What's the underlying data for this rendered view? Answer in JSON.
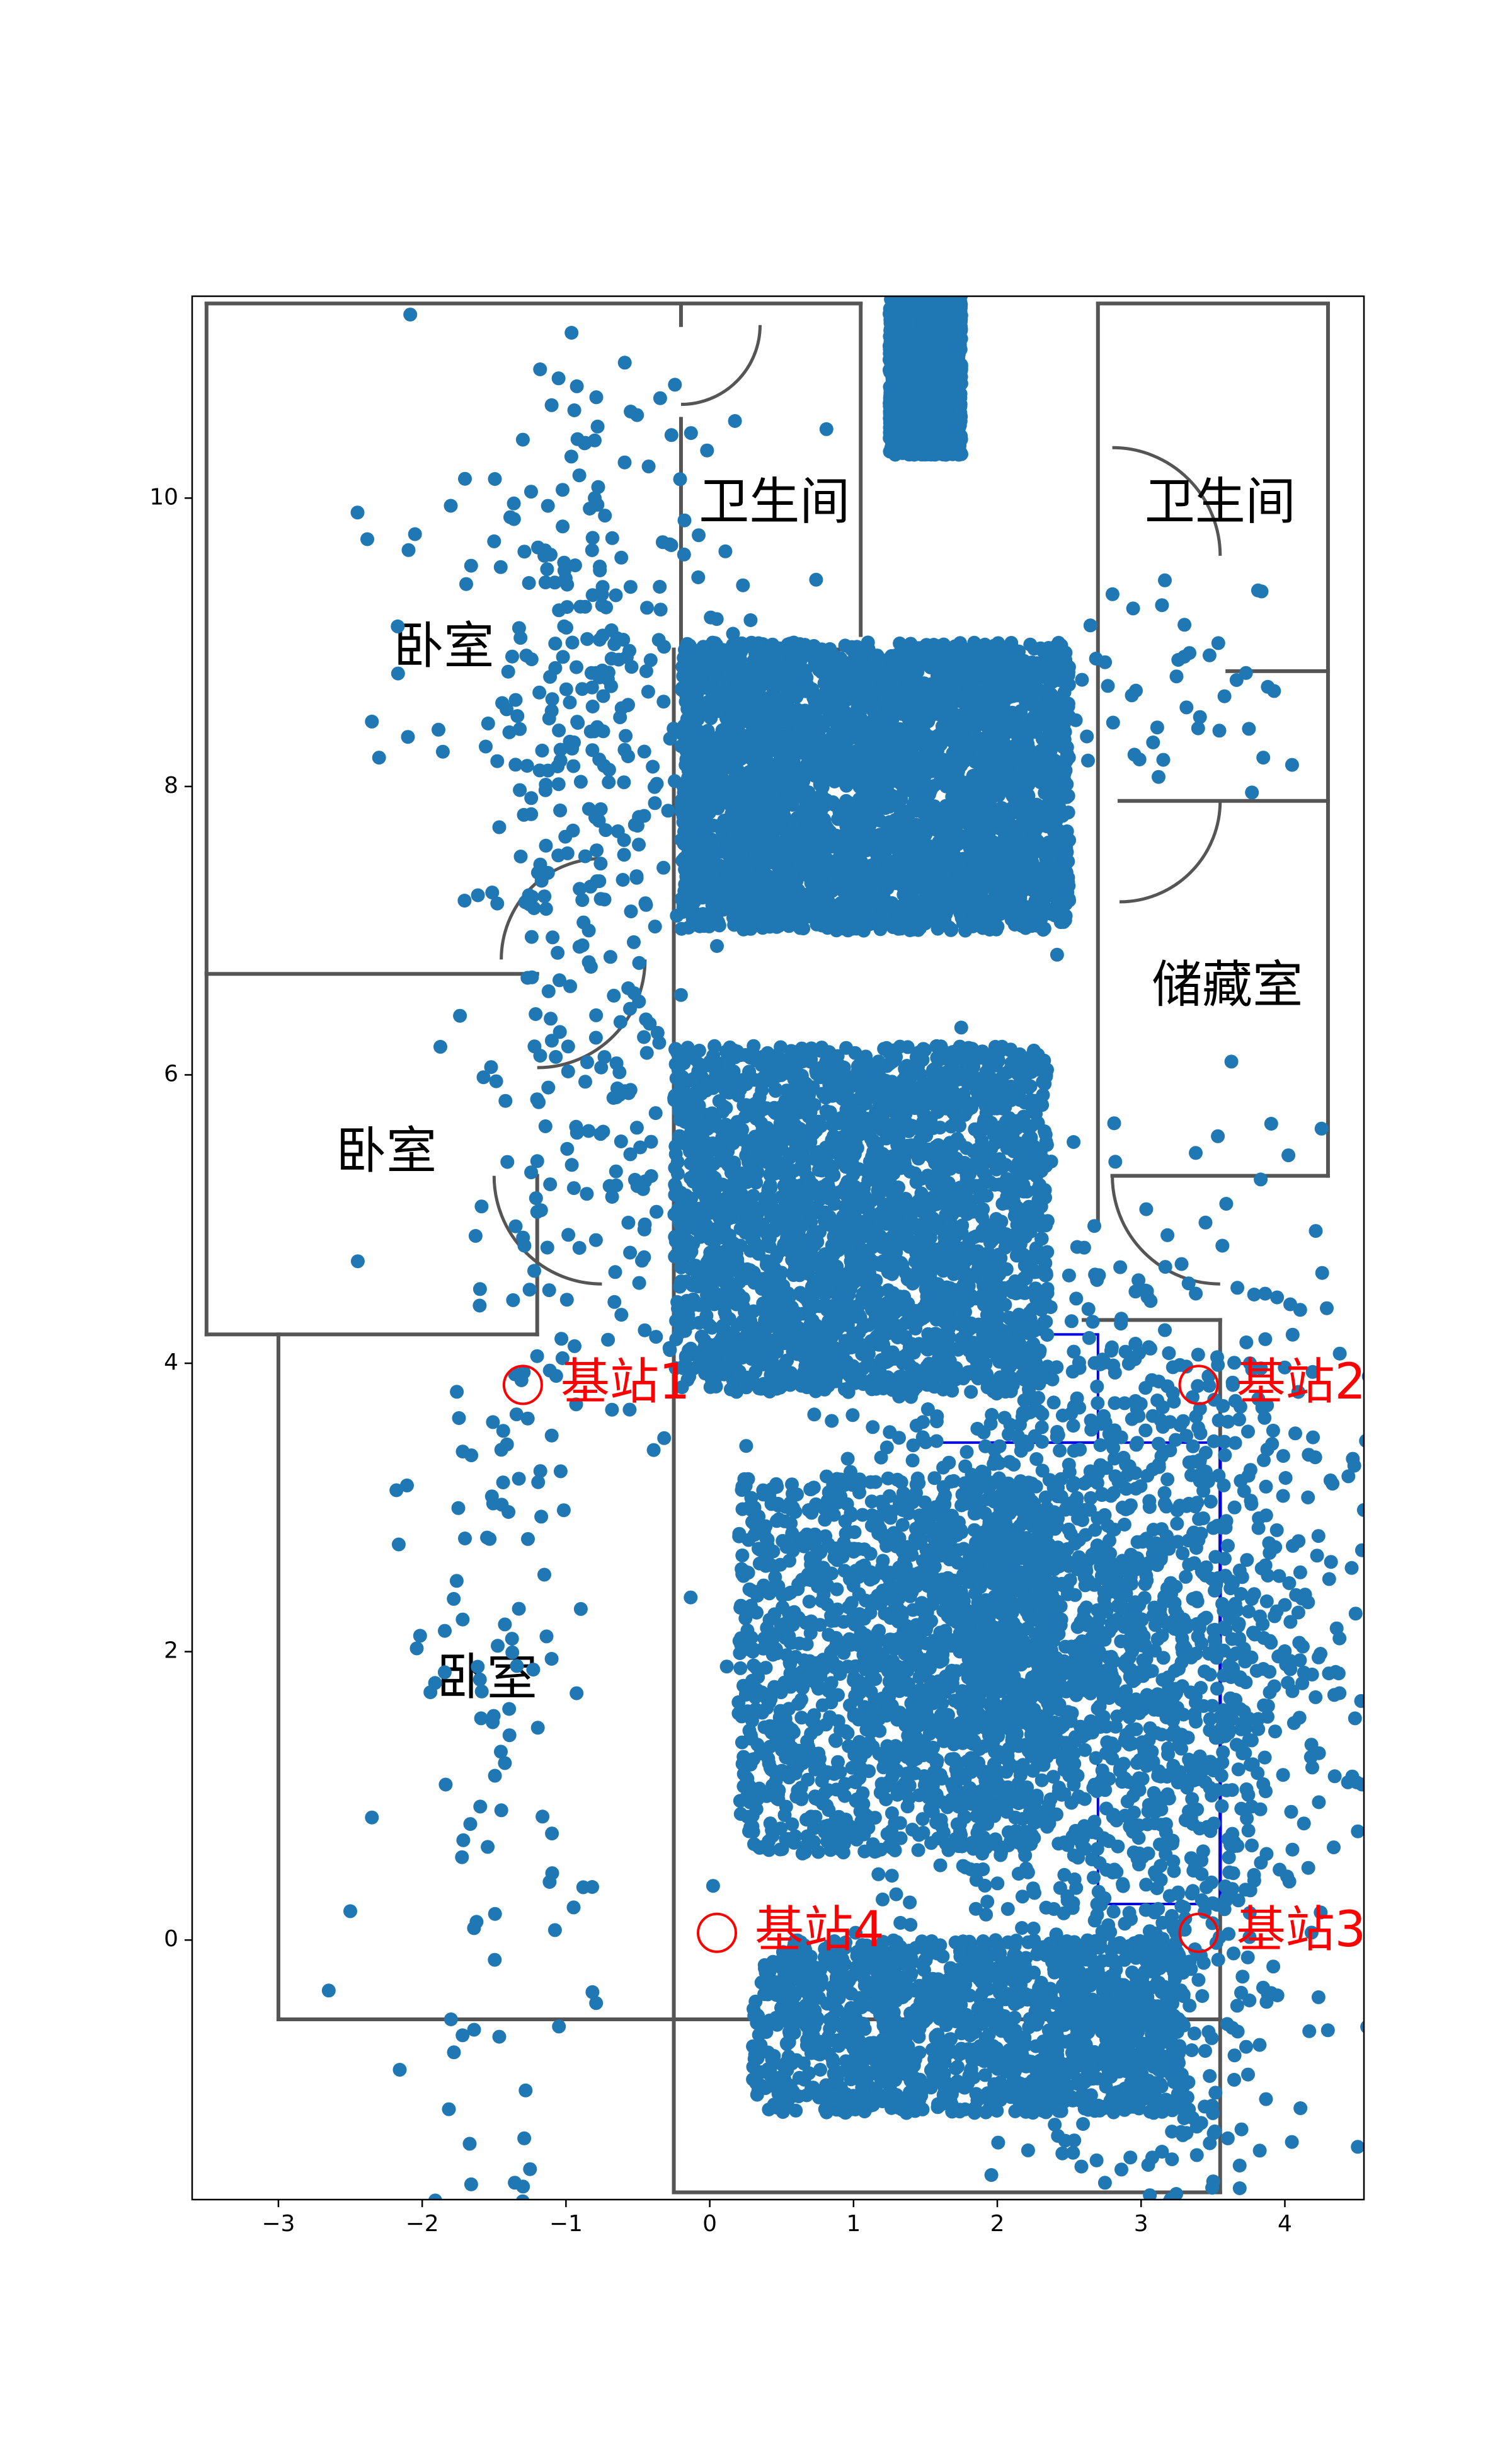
{
  "chart_data": {
    "type": "scatter",
    "title": "",
    "xlabel": "",
    "ylabel": "",
    "xlim": [
      -3.6,
      4.55
    ],
    "ylim": [
      -1.8,
      11.4
    ],
    "grid": false,
    "xticks": [
      -3,
      -2,
      -1,
      0,
      1,
      2,
      3,
      4
    ],
    "yticks": [
      0,
      2,
      4,
      6,
      8,
      10
    ],
    "marker_color": "#1f77b4",
    "wall_color": "#555555",
    "zone_color": "#0000ff",
    "station_color": "#ff0000",
    "room_labels": [
      {
        "text": "卧室",
        "x": -1.85,
        "y": 8.95
      },
      {
        "text": "卫生间",
        "x": 0.45,
        "y": 9.95
      },
      {
        "text": "卫生间",
        "x": 3.55,
        "y": 9.95
      },
      {
        "text": "卧室",
        "x": -2.25,
        "y": 5.45
      },
      {
        "text": "储藏室",
        "x": 3.6,
        "y": 6.6
      },
      {
        "text": "卧室",
        "x": -1.55,
        "y": 1.8
      }
    ],
    "stations": [
      {
        "name": "基站1",
        "x": -1.3,
        "y": 3.85
      },
      {
        "name": "基站2",
        "x": 3.4,
        "y": 3.85
      },
      {
        "name": "基站3",
        "x": 3.4,
        "y": 0.05
      },
      {
        "name": "基站4",
        "x": 0.05,
        "y": 0.05
      }
    ],
    "walls": [
      [
        [
          -3.5,
          11.35
        ],
        [
          -0.2,
          11.35
        ]
      ],
      [
        [
          -3.5,
          11.35
        ],
        [
          -3.5,
          6.7
        ]
      ],
      [
        [
          -3.5,
          6.7
        ],
        [
          -1.2,
          6.7
        ]
      ],
      [
        [
          -3.5,
          6.7
        ],
        [
          -3.5,
          4.2
        ]
      ],
      [
        [
          -3.5,
          4.2
        ],
        [
          -1.2,
          4.2
        ]
      ],
      [
        [
          -1.2,
          4.2
        ],
        [
          -1.2,
          5.3
        ]
      ],
      [
        [
          -3.0,
          4.2
        ],
        [
          -3.0,
          -0.55
        ]
      ],
      [
        [
          -3.0,
          -0.55
        ],
        [
          -0.2,
          -0.55
        ]
      ],
      [
        [
          -0.2,
          11.35
        ],
        [
          -0.2,
          11.2
        ]
      ],
      [
        [
          -0.2,
          10.55
        ],
        [
          -0.2,
          8.95
        ]
      ],
      [
        [
          -0.25,
          8.95
        ],
        [
          -0.25,
          -1.75
        ]
      ],
      [
        [
          -0.2,
          11.35
        ],
        [
          1.05,
          11.35
        ]
      ],
      [
        [
          1.05,
          11.35
        ],
        [
          1.05,
          9.05
        ]
      ],
      [
        [
          -0.2,
          8.95
        ],
        [
          1.05,
          8.95
        ]
      ],
      [
        [
          2.7,
          11.35
        ],
        [
          2.7,
          4.95
        ]
      ],
      [
        [
          2.7,
          11.35
        ],
        [
          4.3,
          11.35
        ]
      ],
      [
        [
          4.3,
          11.35
        ],
        [
          4.3,
          5.3
        ]
      ],
      [
        [
          2.8,
          5.3
        ],
        [
          4.3,
          5.3
        ]
      ],
      [
        [
          3.6,
          8.8
        ],
        [
          4.3,
          8.8
        ]
      ],
      [
        [
          2.85,
          7.9
        ],
        [
          4.3,
          7.9
        ]
      ],
      [
        [
          2.6,
          4.3
        ],
        [
          3.55,
          4.3
        ]
      ],
      [
        [
          3.55,
          4.3
        ],
        [
          3.55,
          -1.75
        ]
      ],
      [
        [
          -0.2,
          -0.55
        ],
        [
          3.55,
          -0.55
        ]
      ],
      [
        [
          -0.25,
          -1.75
        ],
        [
          3.55,
          -1.75
        ]
      ]
    ],
    "zones": [
      [
        [
          1.95,
          4.2
        ],
        [
          2.7,
          4.2
        ],
        [
          2.7,
          3.45
        ],
        [
          1.95,
          3.45
        ]
      ],
      [
        [
          1.6,
          3.45
        ],
        [
          3.55,
          3.45
        ],
        [
          3.55,
          0.25
        ],
        [
          2.7,
          0.25
        ],
        [
          2.7,
          1.3
        ]
      ]
    ],
    "clusters": [
      {
        "x": [
          1.25,
          0.5
        ],
        "y": [
          10.3,
          1.3
        ],
        "n": 3200,
        "shape": "uniform"
      },
      {
        "x": [
          -0.2,
          2.7
        ],
        "y": [
          7.0,
          2.0
        ],
        "n": 3600,
        "shape": "uniform"
      },
      {
        "x": [
          -0.25,
          2.6
        ],
        "y": [
          3.8,
          2.4
        ],
        "n": 2600,
        "shape": "uniform"
      },
      {
        "x": [
          0.2,
          2.2
        ],
        "y": [
          0.6,
          2.6
        ],
        "n": 1300,
        "shape": "uniform"
      },
      {
        "x": [
          0.3,
          3.0
        ],
        "y": [
          -1.2,
          1.2
        ],
        "n": 1400,
        "shape": "uniform"
      },
      {
        "x": [
          2.8,
          0.9
        ],
        "y": [
          2.3,
          1.2
        ],
        "n": 1500,
        "shape": "gauss"
      },
      {
        "x": [
          2.2,
          0.6
        ],
        "y": [
          1.9,
          0.5
        ],
        "n": 400,
        "shape": "gauss"
      },
      {
        "x": [
          -1.5,
          0.35
        ],
        "y": [
          2.0,
          2.0
        ],
        "n": 120,
        "shape": "gauss"
      },
      {
        "x": [
          -0.8,
          0.5
        ],
        "y": [
          8.6,
          1.1
        ],
        "n": 260,
        "shape": "gauss"
      },
      {
        "x": [
          -0.7,
          0.35
        ],
        "y": [
          5.7,
          1.2
        ],
        "n": 140,
        "shape": "gauss"
      },
      {
        "x": [
          3.3,
          0.45
        ],
        "y": [
          8.6,
          0.4
        ],
        "n": 40,
        "shape": "gauss"
      },
      {
        "x": [
          3.0,
          0.4
        ],
        "y": [
          0.5,
          1.0
        ],
        "n": 220,
        "shape": "gauss"
      },
      {
        "x": [
          3.2,
          0.35
        ],
        "y": [
          -0.9,
          0.6
        ],
        "n": 120,
        "shape": "gauss"
      }
    ],
    "points": [
      {
        "x": -2.45,
        "y": 9.9
      },
      {
        "x": -2.05,
        "y": 9.75
      },
      {
        "x": -1.5,
        "y": 9.7
      },
      {
        "x": -1.15,
        "y": 9.6
      },
      {
        "x": -2.35,
        "y": 8.45
      },
      {
        "x": -2.3,
        "y": 8.2
      },
      {
        "x": -1.35,
        "y": 8.6
      },
      {
        "x": -0.55,
        "y": 10.6
      },
      {
        "x": -0.8,
        "y": 10.4
      },
      {
        "x": -0.8,
        "y": 10.0
      },
      {
        "x": 3.75,
        "y": 8.4
      },
      {
        "x": 3.85,
        "y": 8.2
      },
      {
        "x": 4.05,
        "y": 8.15
      },
      {
        "x": 3.3,
        "y": 8.9
      },
      {
        "x": -2.65,
        "y": -0.35
      },
      {
        "x": -2.5,
        "y": 0.2
      },
      {
        "x": -1.8,
        "y": -0.55
      },
      {
        "x": -2.35,
        "y": 0.85
      },
      {
        "x": -1.45,
        "y": 0.9
      },
      {
        "x": -1.1,
        "y": 1.95
      },
      {
        "x": -1.45,
        "y": 3.4
      },
      {
        "x": -1.6,
        "y": 4.4
      },
      {
        "x": -1.35,
        "y": 4.95
      },
      {
        "x": -1.2,
        "y": 5.05
      },
      {
        "x": 3.65,
        "y": 3.0
      },
      {
        "x": 3.7,
        "y": 1.5
      },
      {
        "x": 3.65,
        "y": -0.8
      }
    ]
  }
}
